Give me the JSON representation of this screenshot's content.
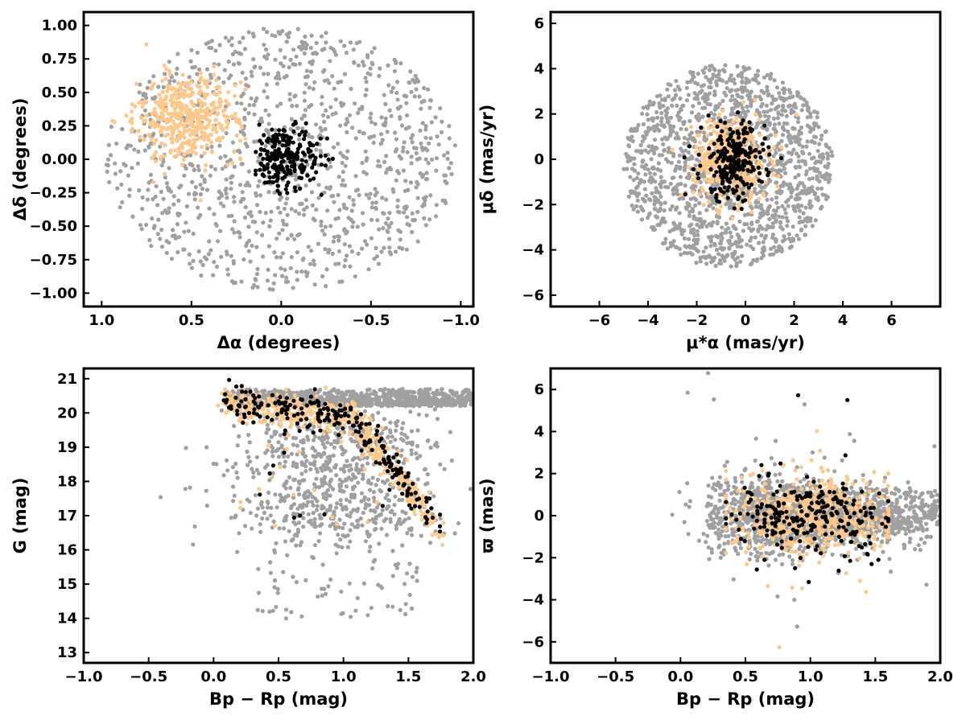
{
  "colors": {
    "field": "#a0a0a0",
    "candidate": "#fdc88a",
    "member": "#000000",
    "frame": "#000000"
  },
  "chart_data": [
    {
      "type": "scatter",
      "panel": "sky-positions",
      "xlabel": "Δα (degrees)",
      "ylabel": "Δδ (degrees)",
      "xlim": [
        1.1,
        -1.07
      ],
      "ylim": [
        -1.1,
        1.1
      ],
      "x_inverted": true,
      "xticks": [
        1.0,
        0.5,
        0.0,
        -0.5,
        -1.0
      ],
      "xtick_labels": [
        "1.0",
        "0.5",
        "0.0",
        "−0.5",
        "−1.0"
      ],
      "yticks": [
        1.0,
        0.75,
        0.5,
        0.25,
        0.0,
        -0.25,
        -0.5,
        -0.75,
        -1.0
      ],
      "ytick_labels": [
        "1.00",
        "0.75",
        "0.50",
        "0.25",
        "0.00",
        "−0.25",
        "−0.50",
        "−0.75",
        "−1.00"
      ],
      "grid": false,
      "series": [
        {
          "role": "field",
          "count": 1100,
          "dist": "disk",
          "cx": 0.0,
          "cy": 0.0,
          "r": 0.98,
          "ry": 0.98
        },
        {
          "role": "candidate",
          "count": 430,
          "dist": "ellipse",
          "cx": 0.52,
          "cy": 0.31,
          "sx": 0.14,
          "sy": 0.16,
          "clip_x": [
            0.2,
            0.95
          ]
        },
        {
          "role": "member",
          "count": 230,
          "dist": "gauss",
          "cx": -0.02,
          "cy": 0.02,
          "sx": 0.1,
          "sy": 0.12
        }
      ]
    },
    {
      "type": "scatter",
      "panel": "proper-motions",
      "xlabel": "μ*α (mas/yr)",
      "ylabel": "μδ (mas/yr)",
      "xlim": [
        -8,
        8
      ],
      "ylim": [
        -6.5,
        6.5
      ],
      "xticks": [
        -6,
        -4,
        -2,
        0,
        2,
        4,
        6
      ],
      "xtick_labels": [
        "−6",
        "−4",
        "−2",
        "0",
        "2",
        "4",
        "6"
      ],
      "yticks": [
        6,
        4,
        2,
        0,
        -2,
        -4,
        -6
      ],
      "ytick_labels": [
        "6",
        "4",
        "2",
        "0",
        "−2",
        "−4",
        "−6"
      ],
      "grid": false,
      "series": [
        {
          "role": "field",
          "count": 1500,
          "dist": "disk",
          "cx": -0.7,
          "cy": -0.3,
          "r": 4.3,
          "ry": 4.5
        },
        {
          "role": "candidate",
          "count": 480,
          "dist": "gauss",
          "cx": -0.6,
          "cy": 0.0,
          "sx": 0.75,
          "sy": 0.9
        },
        {
          "role": "member",
          "count": 240,
          "dist": "gauss",
          "cx": -0.5,
          "cy": -0.1,
          "sx": 0.65,
          "sy": 0.85
        }
      ]
    },
    {
      "type": "scatter",
      "panel": "cmd-g",
      "xlabel": "Bp − Rp (mag)",
      "ylabel": "G (mag)",
      "xlim": [
        -1.0,
        2.0
      ],
      "ylim": [
        12.7,
        21.3
      ],
      "xticks": [
        -1.0,
        -0.5,
        0.0,
        0.5,
        1.0,
        1.5,
        2.0
      ],
      "xtick_labels": [
        "−1.0",
        "−0.5",
        "0.0",
        "0.5",
        "1.0",
        "1.5",
        "2.0"
      ],
      "yticks": [
        21,
        20,
        19,
        18,
        17,
        16,
        15,
        14,
        13
      ],
      "ytick_labels": [
        "21",
        "20",
        "19",
        "18",
        "17",
        "16",
        "15",
        "14",
        "13"
      ],
      "grid": false,
      "series": [
        {
          "role": "field",
          "count": 1800,
          "dist": "cmd"
        },
        {
          "role": "candidate",
          "count": 520,
          "dist": "sequence"
        },
        {
          "role": "member",
          "count": 230,
          "dist": "sequence"
        }
      ]
    },
    {
      "type": "scatter",
      "panel": "cmd-parallax",
      "xlabel": "Bp − Rp (mag)",
      "ylabel": "ϖ (mas)",
      "xlim": [
        -1.0,
        2.0
      ],
      "ylim": [
        -7.0,
        7.0
      ],
      "xticks": [
        -1.0,
        -0.5,
        0.0,
        0.5,
        1.0,
        1.5,
        2.0
      ],
      "xtick_labels": [
        "−1.0",
        "−0.5",
        "0.0",
        "0.5",
        "1.0",
        "1.5",
        "2.0"
      ],
      "yticks": [
        6,
        4,
        2,
        0,
        -2,
        -4,
        -6
      ],
      "ytick_labels": [
        "6",
        "4",
        "2",
        "0",
        "−2",
        "−4",
        "−6"
      ],
      "grid": false,
      "series": [
        {
          "role": "field",
          "count": 1700,
          "dist": "plx"
        },
        {
          "role": "candidate",
          "count": 520,
          "dist": "plx"
        },
        {
          "role": "member",
          "count": 230,
          "dist": "plx"
        }
      ]
    }
  ]
}
